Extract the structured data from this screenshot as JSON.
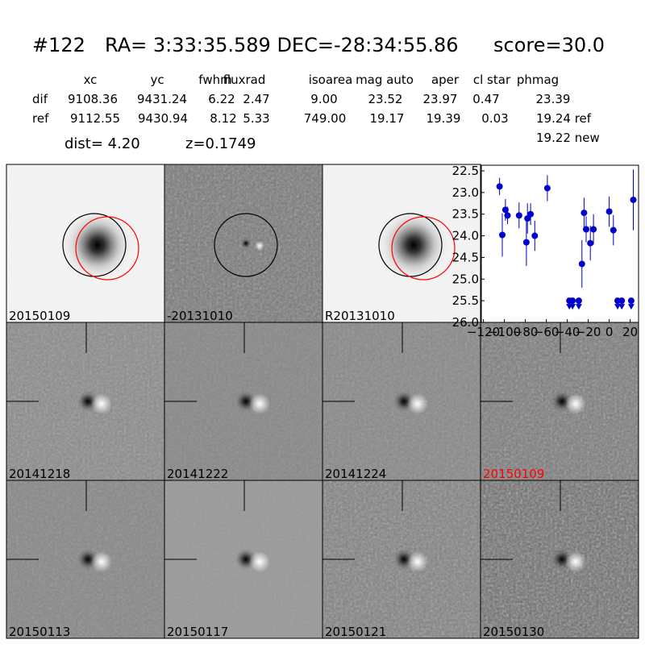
{
  "header": {
    "id": "#122",
    "coords": "RA= 3:33:35.589 DEC=-28:34:55.86",
    "score": "score=30.0"
  },
  "table": {
    "columns": [
      "xc",
      "yc",
      "fwhm",
      "fluxrad",
      "isoarea",
      "mag auto",
      "aper",
      "cl star",
      "phmag"
    ],
    "rows": [
      [
        "dif",
        "9108.36",
        "9431.24",
        "6.22",
        "2.47",
        "9.00",
        "23.52",
        "23.97",
        "0.47",
        "23.39"
      ],
      [
        "ref",
        "9112.55",
        "9430.94",
        "8.12",
        "5.33",
        "749.00",
        "19.17",
        "19.39",
        "0.03",
        "19.24 ref"
      ]
    ],
    "extra": "19.22 new",
    "dist": "dist=  4.20",
    "z": "z=0.1749"
  },
  "panels": [
    {
      "label": "20150109"
    },
    {
      "label": "-20131010"
    },
    {
      "label": "R20131010"
    },
    {
      "label": "20141218"
    },
    {
      "label": "20141222"
    },
    {
      "label": "20141224"
    },
    {
      "label": "20150109",
      "color": "#ff0000"
    },
    {
      "label": "20150113"
    },
    {
      "label": "20150117"
    },
    {
      "label": "20150121"
    },
    {
      "label": "20150130"
    }
  ],
  "chart_data": {
    "type": "scatter",
    "color": "#0000cc",
    "y_inverted": true,
    "xlim": [
      -122,
      28
    ],
    "ylim": [
      22.37,
      26.0
    ],
    "xticks": [
      {
        "value": -120,
        "label": "−120"
      },
      {
        "value": -100,
        "label": "−100"
      },
      {
        "value": -80,
        "label": "−80"
      },
      {
        "value": -60,
        "label": "−60"
      },
      {
        "value": -40,
        "label": "−40"
      },
      {
        "value": -20,
        "label": "−20"
      },
      0,
      20
    ],
    "yticks": [
      22.5,
      {
        "value": 23,
        "label": "23.0"
      },
      23.5,
      {
        "value": 24,
        "label": "24.0"
      },
      24.5,
      {
        "value": 25,
        "label": "25.0"
      },
      25.5,
      {
        "value": 26,
        "label": "26.0"
      }
    ],
    "points": {
      "x": [
        -104.6,
        -102,
        -99,
        -97,
        -86,
        -79,
        -78,
        -75,
        -71,
        -59,
        -26,
        -24,
        -22,
        -18,
        -15,
        0,
        4,
        23
      ],
      "values": [
        22.86,
        23.98,
        23.4,
        23.53,
        23.53,
        24.15,
        23.6,
        23.5,
        24.0,
        22.9,
        24.65,
        23.47,
        23.85,
        24.17,
        23.85,
        23.44,
        23.87,
        23.17
      ],
      "errors": [
        0.2,
        0.5,
        0.25,
        0.2,
        0.3,
        0.55,
        0.35,
        0.25,
        0.35,
        0.3,
        0.55,
        0.35,
        0.3,
        0.4,
        0.35,
        0.35,
        0.35,
        0.7
      ]
    },
    "limits": {
      "x": [
        -38,
        -35,
        -29,
        8,
        12,
        21
      ],
      "values": [
        25.5,
        25.5,
        25.5,
        25.5,
        25.5,
        25.5
      ]
    }
  }
}
